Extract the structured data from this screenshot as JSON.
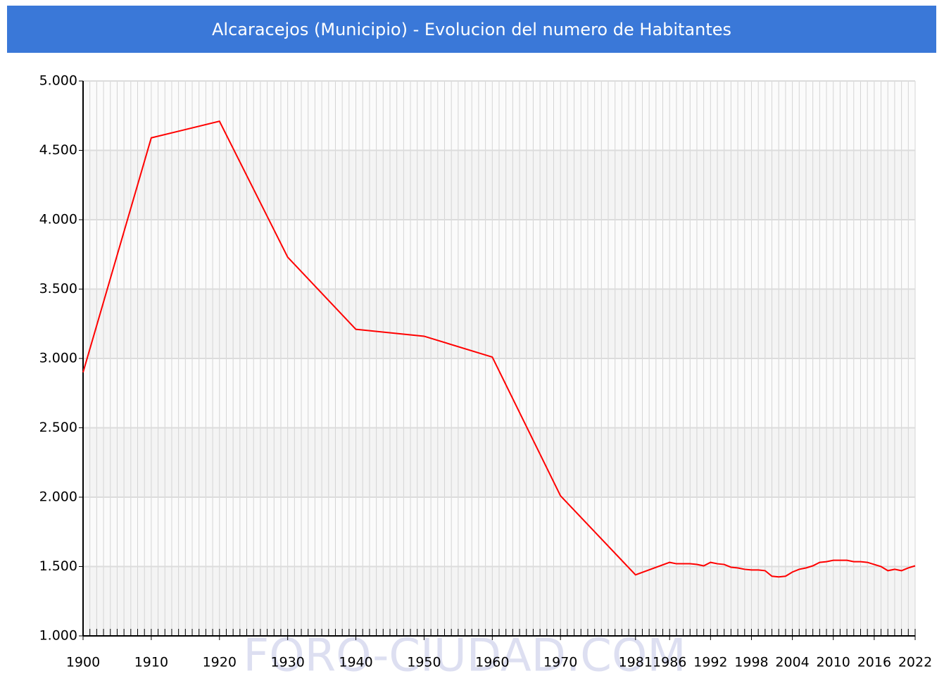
{
  "chart_data": {
    "type": "line",
    "title": "Alcaracejos (Municipio) - Evolucion del numero de Habitantes",
    "watermark": "FORO-CIUDAD.COM",
    "x": [
      1900,
      1910,
      1920,
      1930,
      1940,
      1950,
      1960,
      1970,
      1981,
      1986,
      1987,
      1988,
      1989,
      1990,
      1991,
      1992,
      1993,
      1994,
      1995,
      1996,
      1997,
      1998,
      1999,
      2000,
      2001,
      2002,
      2003,
      2004,
      2005,
      2006,
      2007,
      2008,
      2009,
      2010,
      2011,
      2012,
      2013,
      2014,
      2015,
      2016,
      2017,
      2018,
      2019,
      2020,
      2021,
      2022
    ],
    "series": [
      {
        "name": "Habitantes",
        "color": "#ff0000",
        "values": [
          2900,
          4590,
          4710,
          3730,
          3210,
          3160,
          3010,
          2010,
          1440,
          1530,
          1520,
          1520,
          1520,
          1515,
          1505,
          1530,
          1520,
          1515,
          1495,
          1490,
          1480,
          1475,
          1475,
          1470,
          1430,
          1425,
          1430,
          1460,
          1480,
          1490,
          1505,
          1530,
          1535,
          1545,
          1545,
          1545,
          1535,
          1535,
          1530,
          1515,
          1500,
          1470,
          1480,
          1470,
          1490,
          1505
        ]
      }
    ],
    "xlim": [
      1900,
      2022
    ],
    "xticks": [
      1900,
      1910,
      1920,
      1930,
      1940,
      1950,
      1960,
      1970,
      1981,
      1986,
      1992,
      1998,
      2004,
      2010,
      2016,
      2022
    ],
    "ylim": [
      1000,
      5000
    ],
    "yticks": [
      {
        "value": 1000,
        "label": "1.000"
      },
      {
        "value": 1500,
        "label": "1.500"
      },
      {
        "value": 2000,
        "label": "2.000"
      },
      {
        "value": 2500,
        "label": "2.500"
      },
      {
        "value": 3000,
        "label": "3.000"
      },
      {
        "value": 3500,
        "label": "3.500"
      },
      {
        "value": 4000,
        "label": "4.000"
      },
      {
        "value": 4500,
        "label": "4.500"
      },
      {
        "value": 5000,
        "label": "5.000"
      }
    ],
    "grid": true
  }
}
